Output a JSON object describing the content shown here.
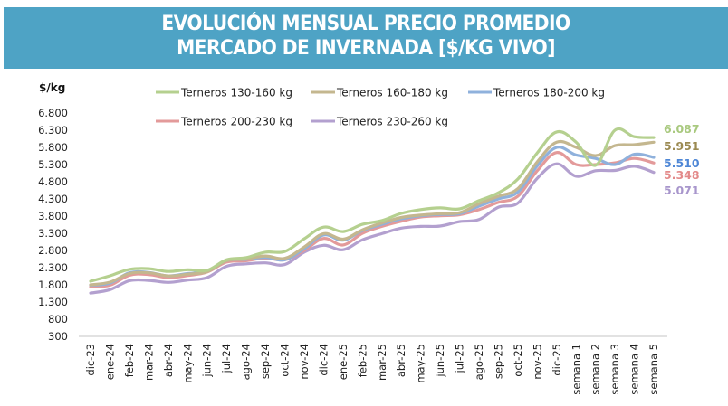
{
  "header": {
    "title_line1": "EVOLUCIÓN MENSUAL PRECIO PROMEDIO",
    "title_line2": "MERCADO DE INVERNADA [$/KG VIVO]",
    "background_color": "#4ea3c5"
  },
  "chart_data": {
    "type": "line",
    "title": "EVOLUCIÓN MENSUAL PRECIO PROMEDIO MERCADO DE INVERNADA [$/KG VIVO]",
    "xlabel": "",
    "ylabel": "$/kg",
    "ylim": [
      300,
      6800
    ],
    "yticks": [
      6800,
      6300,
      5800,
      5300,
      4800,
      4300,
      3800,
      3300,
      2800,
      2300,
      1800,
      1300,
      800,
      300
    ],
    "ytick_labels": [
      "6.800",
      "6.300",
      "5.800",
      "5.300",
      "4.800",
      "4.300",
      "3.800",
      "3.300",
      "2.800",
      "2.300",
      "1.800",
      "1.300",
      "800",
      "300"
    ],
    "grid": false,
    "legend_position": "top",
    "categories": [
      "dic-23",
      "ene-24",
      "feb-24",
      "mar-24",
      "abr-24",
      "may-24",
      "jun-24",
      "jul-24",
      "ago-24",
      "sep-24",
      "oct-24",
      "nov-24",
      "dic-24",
      "ene-25",
      "feb-25",
      "mar-25",
      "abr-25",
      "may-25",
      "jun-25",
      "jul-25",
      "ago-25",
      "sep-25",
      "oct-25",
      "nov-25",
      "dic-25",
      "semana 1",
      "semana 2",
      "semana 3",
      "semana 4",
      "semana 5"
    ],
    "series": [
      {
        "name": "Terneros 130-160 kg",
        "color": "#b5d08f",
        "label_color": "#a9c97f",
        "end_label": "6.087",
        "values": [
          1905,
          2063,
          2250,
          2270,
          2190,
          2240,
          2220,
          2530,
          2590,
          2750,
          2770,
          3140,
          3480,
          3350,
          3560,
          3670,
          3880,
          3990,
          4040,
          4010,
          4250,
          4480,
          4880,
          5640,
          6250,
          5950,
          5280,
          6300,
          6110,
          6087
        ]
      },
      {
        "name": "Terneros 160-180 kg",
        "color": "#c4b78f",
        "label_color": "#9b8a52",
        "end_label": "5.951",
        "values": [
          1800,
          1880,
          2130,
          2150,
          2060,
          2110,
          2180,
          2500,
          2550,
          2640,
          2570,
          2900,
          3290,
          3130,
          3400,
          3600,
          3760,
          3830,
          3870,
          3900,
          4160,
          4380,
          4600,
          5380,
          5950,
          5800,
          5560,
          5850,
          5880,
          5951
        ]
      },
      {
        "name": "Terneros 180-200 kg",
        "color": "#8fb1dc",
        "label_color": "#4f87d6",
        "end_label": "5.510",
        "values": [
          1790,
          1850,
          2150,
          2160,
          2060,
          2130,
          2190,
          2500,
          2540,
          2600,
          2530,
          2850,
          3250,
          3100,
          3380,
          3560,
          3720,
          3810,
          3850,
          3870,
          4090,
          4300,
          4500,
          5260,
          5800,
          5580,
          5480,
          5300,
          5600,
          5510
        ]
      },
      {
        "name": "Terneros 200-230 kg",
        "color": "#e39a9a",
        "label_color": "#e38a8a",
        "end_label": "5.348",
        "values": [
          1740,
          1790,
          2080,
          2100,
          2010,
          2070,
          2170,
          2460,
          2500,
          2580,
          2530,
          2800,
          3150,
          2960,
          3300,
          3500,
          3650,
          3770,
          3810,
          3840,
          3990,
          4200,
          4380,
          5120,
          5650,
          5300,
          5300,
          5350,
          5480,
          5348
        ]
      },
      {
        "name": "Terneros 230-260 kg",
        "color": "#b3a0cf",
        "label_color": "#a896cc",
        "end_label": "5.071",
        "values": [
          1560,
          1660,
          1920,
          1930,
          1870,
          1940,
          2010,
          2340,
          2410,
          2440,
          2390,
          2750,
          2950,
          2820,
          3110,
          3290,
          3450,
          3500,
          3510,
          3640,
          3700,
          4060,
          4180,
          4900,
          5320,
          4960,
          5120,
          5130,
          5250,
          5071
        ]
      }
    ]
  }
}
